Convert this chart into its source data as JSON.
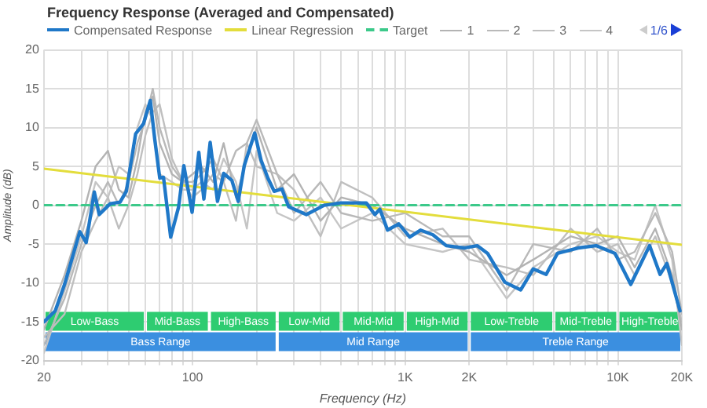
{
  "chart_data": {
    "type": "line",
    "title": "Frequency Response (Averaged and Compensated)",
    "xlabel": "Frequency (Hz)",
    "ylabel": "Amplitude (dB)",
    "log": "x",
    "grid": true,
    "legend": "top",
    "marker": "none",
    "xlim": [
      20,
      20000
    ],
    "ylim": [
      -20,
      20
    ],
    "xticks": [
      20,
      {
        "value": 30,
        "label": null
      },
      {
        "value": 40,
        "label": null
      },
      {
        "value": 50,
        "label": null
      },
      {
        "value": 60,
        "label": null
      },
      {
        "value": 70,
        "label": null
      },
      {
        "value": 80,
        "label": null
      },
      {
        "value": 90,
        "label": null
      },
      100,
      {
        "value": 200,
        "label": null
      },
      {
        "value": 300,
        "label": null
      },
      {
        "value": 400,
        "label": null
      },
      {
        "value": 500,
        "label": null
      },
      {
        "value": 600,
        "label": null
      },
      {
        "value": 700,
        "label": null
      },
      {
        "value": 800,
        "label": null
      },
      {
        "value": 900,
        "label": null
      },
      {
        "value": 1000,
        "label": "1K"
      },
      {
        "value": 2000,
        "label": "2K"
      },
      {
        "value": 3000,
        "label": null
      },
      {
        "value": 4000,
        "label": null
      },
      {
        "value": 5000,
        "label": null
      },
      {
        "value": 6000,
        "label": null
      },
      {
        "value": 7000,
        "label": null
      },
      {
        "value": 8000,
        "label": null
      },
      {
        "value": 9000,
        "label": null
      },
      {
        "value": 10000,
        "label": "10K"
      },
      {
        "value": 20000,
        "label": "20K"
      }
    ],
    "yticks": [
      -20,
      -15,
      -10,
      -5,
      0,
      5,
      10,
      15,
      20
    ],
    "series": [
      {
        "name": "Compensated Response",
        "color": "#1f78c8",
        "x": [
          20,
          22.6,
          25,
          29.5,
          31.6,
          34.5,
          36.4,
          41,
          45.6,
          48.8,
          54,
          58.8,
          63.3,
          66.4,
          70.1,
          73,
          78.9,
          86,
          91,
          99.5,
          107,
          113,
          121,
          131,
          140,
          153,
          164,
          175,
          196,
          210,
          226,
          242,
          263,
          283,
          343,
          416,
          496,
          600,
          656,
          720,
          760,
          826,
          932,
          1050,
          1180,
          1350,
          1560,
          1890,
          2180,
          2440,
          2940,
          3490,
          4000,
          4600,
          5200,
          6500,
          7900,
          9700,
          11500,
          14100,
          15800,
          17000,
          19600
        ],
        "values": [
          -15,
          -13.6,
          -10.2,
          -3.4,
          -4.8,
          1.7,
          -1.2,
          0.2,
          0.4,
          1.8,
          9.2,
          10.5,
          13.5,
          8.5,
          3.5,
          3.6,
          -4.1,
          -0.2,
          5.1,
          -0.9,
          6.8,
          0.8,
          8.1,
          0.5,
          4.1,
          3.2,
          0.5,
          5.1,
          9.3,
          5.8,
          3.5,
          1.8,
          2.1,
          -0.2,
          -1.2,
          0,
          0.3,
          0.3,
          0.3,
          -1.2,
          -0.5,
          -3.2,
          -2.4,
          -4.1,
          -3.2,
          -3.8,
          -5.2,
          -5.5,
          -5.2,
          -6.2,
          -9.9,
          -10.9,
          -8.2,
          -8.9,
          -6.2,
          -5.5,
          -5.2,
          -6.2,
          -10.2,
          -5.2,
          -8.9,
          -7.5,
          -13.6
        ]
      },
      {
        "name": "Linear Regression",
        "color": "#e3dd3c",
        "x": [
          20,
          20000
        ],
        "values": [
          4.7,
          -5.1
        ]
      },
      {
        "name": "Target",
        "color": "#3cc98a",
        "line_style": "dashed",
        "x": [
          20,
          20000
        ],
        "values": [
          0,
          0
        ]
      },
      {
        "name": "1",
        "color": "#b3b3b3",
        "x": [
          20,
          25,
          30,
          35,
          40,
          45,
          50,
          55,
          60,
          65,
          70,
          80,
          90,
          100,
          110,
          125,
          140,
          160,
          180,
          200,
          250,
          300,
          400,
          500,
          700,
          1000,
          1500,
          2000,
          3000,
          4000,
          6000,
          8000,
          10000,
          12000,
          15000,
          18000,
          20000
        ],
        "values": [
          -16,
          -9,
          -2,
          5,
          7,
          2,
          1,
          6,
          12,
          14,
          8,
          4,
          3,
          4,
          5,
          3,
          8,
          1,
          6,
          10,
          2,
          4,
          -2,
          1,
          0,
          -3,
          -5,
          -6,
          -9,
          -7,
          -4,
          -5,
          -4,
          -8,
          -3,
          -9,
          -16
        ]
      },
      {
        "name": "2",
        "color": "#b9b9b9",
        "x": [
          20,
          25,
          30,
          35,
          40,
          45,
          50,
          55,
          60,
          65,
          70,
          80,
          90,
          100,
          110,
          125,
          140,
          160,
          180,
          200,
          250,
          300,
          400,
          500,
          700,
          1000,
          1500,
          2000,
          3000,
          4000,
          6000,
          8000,
          10000,
          12000,
          15000,
          18000,
          20000
        ],
        "values": [
          -18,
          -12,
          -5,
          0,
          3,
          0,
          3,
          8,
          11,
          15,
          10,
          5,
          3,
          3,
          4,
          6,
          3,
          7,
          8,
          11,
          4,
          -1,
          3,
          -1,
          -2,
          -1,
          -4,
          -4,
          -11,
          -5,
          -6,
          -3,
          -7,
          -6,
          -1,
          -6,
          -14
        ]
      },
      {
        "name": "3",
        "color": "#bfbfbf",
        "x": [
          20,
          25,
          30,
          35,
          40,
          45,
          50,
          55,
          60,
          65,
          70,
          80,
          90,
          100,
          110,
          125,
          140,
          160,
          180,
          200,
          250,
          300,
          400,
          500,
          700,
          1000,
          1500,
          2000,
          3000,
          4000,
          6000,
          8000,
          10000,
          12000,
          15000,
          18000,
          20000
        ],
        "values": [
          -17,
          -14,
          -6,
          -2,
          1,
          -3,
          0,
          4,
          9,
          12,
          13,
          6,
          3,
          1,
          2,
          4,
          3,
          -2,
          8,
          5,
          4,
          2,
          -4,
          3,
          1,
          -4,
          -3,
          -7,
          -8,
          -9,
          -3,
          -6,
          -5,
          -9,
          -4,
          -10,
          -15
        ]
      },
      {
        "name": "4",
        "color": "#c5c5c5",
        "x": [
          20,
          25,
          30,
          35,
          40,
          45,
          50,
          55,
          60,
          65,
          70,
          80,
          90,
          100,
          110,
          125,
          140,
          160,
          180,
          200,
          250,
          300,
          400,
          500,
          700,
          1000,
          1500,
          2000,
          3000,
          4000,
          6000,
          8000,
          10000,
          12000,
          15000,
          18000,
          20000
        ],
        "values": [
          -19,
          -11,
          -4,
          3,
          1,
          5,
          4,
          10,
          13,
          11,
          4,
          3,
          2,
          2,
          3,
          2,
          6,
          3,
          -3,
          7,
          -1,
          -2,
          1,
          -3,
          -1,
          -5,
          -6,
          -5,
          -12,
          -8,
          -5,
          -4,
          -6,
          -7,
          0,
          -7,
          -18
        ]
      }
    ],
    "bands": [
      {
        "axis": "x",
        "from": 20,
        "to": 60,
        "label": "Low-Bass",
        "color": "#2ecc71"
      },
      {
        "axis": "x",
        "from": 60,
        "to": 120,
        "label": "Mid-Bass",
        "color": "#2ecc71"
      },
      {
        "axis": "x",
        "from": 120,
        "to": 250,
        "label": "High-Bass",
        "color": "#2ecc71"
      },
      {
        "axis": "x",
        "from": 250,
        "to": 500,
        "label": "Low-Mid",
        "color": "#2ecc71"
      },
      {
        "axis": "x",
        "from": 500,
        "to": 1000,
        "label": "Mid-Mid",
        "color": "#2ecc71"
      },
      {
        "axis": "x",
        "from": 1000,
        "to": 2000,
        "label": "High-Mid",
        "color": "#2ecc71"
      },
      {
        "axis": "x",
        "from": 2000,
        "to": 5000,
        "label": "Low-Treble",
        "color": "#2ecc71"
      },
      {
        "axis": "x",
        "from": 5000,
        "to": 10000,
        "label": "Mid-Treble",
        "color": "#2ecc71"
      },
      {
        "axis": "x",
        "from": 10000,
        "to": 20000,
        "label": "High-Treble",
        "color": "#2ecc71"
      },
      {
        "axis": "x",
        "from": 20,
        "to": 250,
        "label": "Bass Range",
        "color": "#3b8fe0"
      },
      {
        "axis": "x",
        "from": 250,
        "to": 2000,
        "label": "Mid Range",
        "color": "#3b8fe0"
      },
      {
        "axis": "x",
        "from": 2000,
        "to": 20000,
        "label": "Treble Range",
        "color": "#3b8fe0"
      }
    ],
    "annotations": [
      "1/6"
    ]
  }
}
